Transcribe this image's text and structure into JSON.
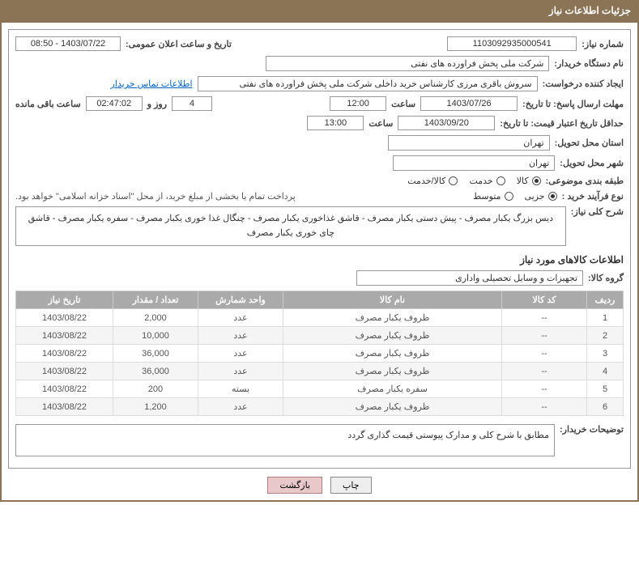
{
  "header": {
    "title": "جزئیات اطلاعات نیاز"
  },
  "labels": {
    "need_no": "شماره نیاز:",
    "announce_dt": "تاریخ و ساعت اعلان عمومی:",
    "buyer_org": "نام دستگاه خریدار:",
    "requester": "ایجاد کننده درخواست:",
    "contact_link": "اطلاعات تماس خریدار",
    "response_deadline": "مهلت ارسال پاسخ: تا تاریخ:",
    "time": "ساعت",
    "days_and": "روز و",
    "remaining": "ساعت باقی مانده",
    "price_validity": "حداقل تاریخ اعتبار قیمت: تا تاریخ:",
    "delivery_province": "استان محل تحویل:",
    "delivery_city": "شهر محل تحویل:",
    "subject_class": "طبقه بندی موضوعی:",
    "purchase_type": "نوع فرآیند خرید :",
    "treasury_note": "پرداخت تمام یا بخشی از مبلغ خرید، از محل \"اسناد خزانه اسلامی\" خواهد بود.",
    "need_desc": "شرح کلی نیاز:",
    "items_info": "اطلاعات کالاهای مورد نیاز",
    "goods_group": "گروه کالا:",
    "buyer_notes": "توضیحات خریدار:"
  },
  "values": {
    "need_no": "1103092935000541",
    "announce_dt": "1403/07/22 - 08:50",
    "buyer_org": "شرکت ملی پخش فراورده های نفتی",
    "requester": "سروش باقری مرزی کارشناس خرید داخلی شرکت ملی پخش فراورده های نفتی",
    "response_date": "1403/07/26",
    "response_time": "12:00",
    "remaining_days": "4",
    "remaining_time": "02:47:02",
    "price_date": "1403/09/20",
    "price_time": "13:00",
    "province": "تهران",
    "city": "تهران",
    "need_desc": "دیس بزرگ یکبار مصرف - پیش دستی یکبار مصرف - قاشق غذاخوری  یکبار مصرف - چنگال غذا خوری یکبار مصرف - سفره یکبار مصرف - قاشق چای خوری یکبار مصرف",
    "goods_group": "تجهیزات و وسایل تحصیلی واداری",
    "buyer_notes": "مطابق با شرح کلی و مدارک پیوستی قیمت گذاری گردد"
  },
  "radios": {
    "subject": {
      "options": [
        "کالا",
        "خدمت",
        "کالا/خدمت"
      ],
      "selected": 0
    },
    "purchase": {
      "options": [
        "جزیی",
        "متوسط"
      ],
      "selected": 0
    }
  },
  "table": {
    "headers": [
      "ردیف",
      "کد کالا",
      "نام کالا",
      "واحد شمارش",
      "تعداد / مقدار",
      "تاریخ نیاز"
    ],
    "rows": [
      [
        "1",
        "--",
        "ظروف یکبار مصرف",
        "عدد",
        "2,000",
        "1403/08/22"
      ],
      [
        "2",
        "--",
        "ظروف یکبار مصرف",
        "عدد",
        "10,000",
        "1403/08/22"
      ],
      [
        "3",
        "--",
        "ظروف یکبار مصرف",
        "عدد",
        "36,000",
        "1403/08/22"
      ],
      [
        "4",
        "--",
        "ظروف یکبار مصرف",
        "عدد",
        "36,000",
        "1403/08/22"
      ],
      [
        "5",
        "--",
        "سفره یکبار مصرف",
        "بسته",
        "200",
        "1403/08/22"
      ],
      [
        "6",
        "--",
        "ظروف یکبار مصرف",
        "عدد",
        "1,200",
        "1403/08/22"
      ]
    ],
    "col_widths": [
      "6%",
      "14%",
      "36%",
      "14%",
      "14%",
      "16%"
    ]
  },
  "buttons": {
    "print": "چاپ",
    "return": "بازگشت"
  },
  "colors": {
    "header_bg": "#8b7355",
    "border": "#999999",
    "th_bg": "#aaaaaa",
    "link": "#0066cc"
  }
}
